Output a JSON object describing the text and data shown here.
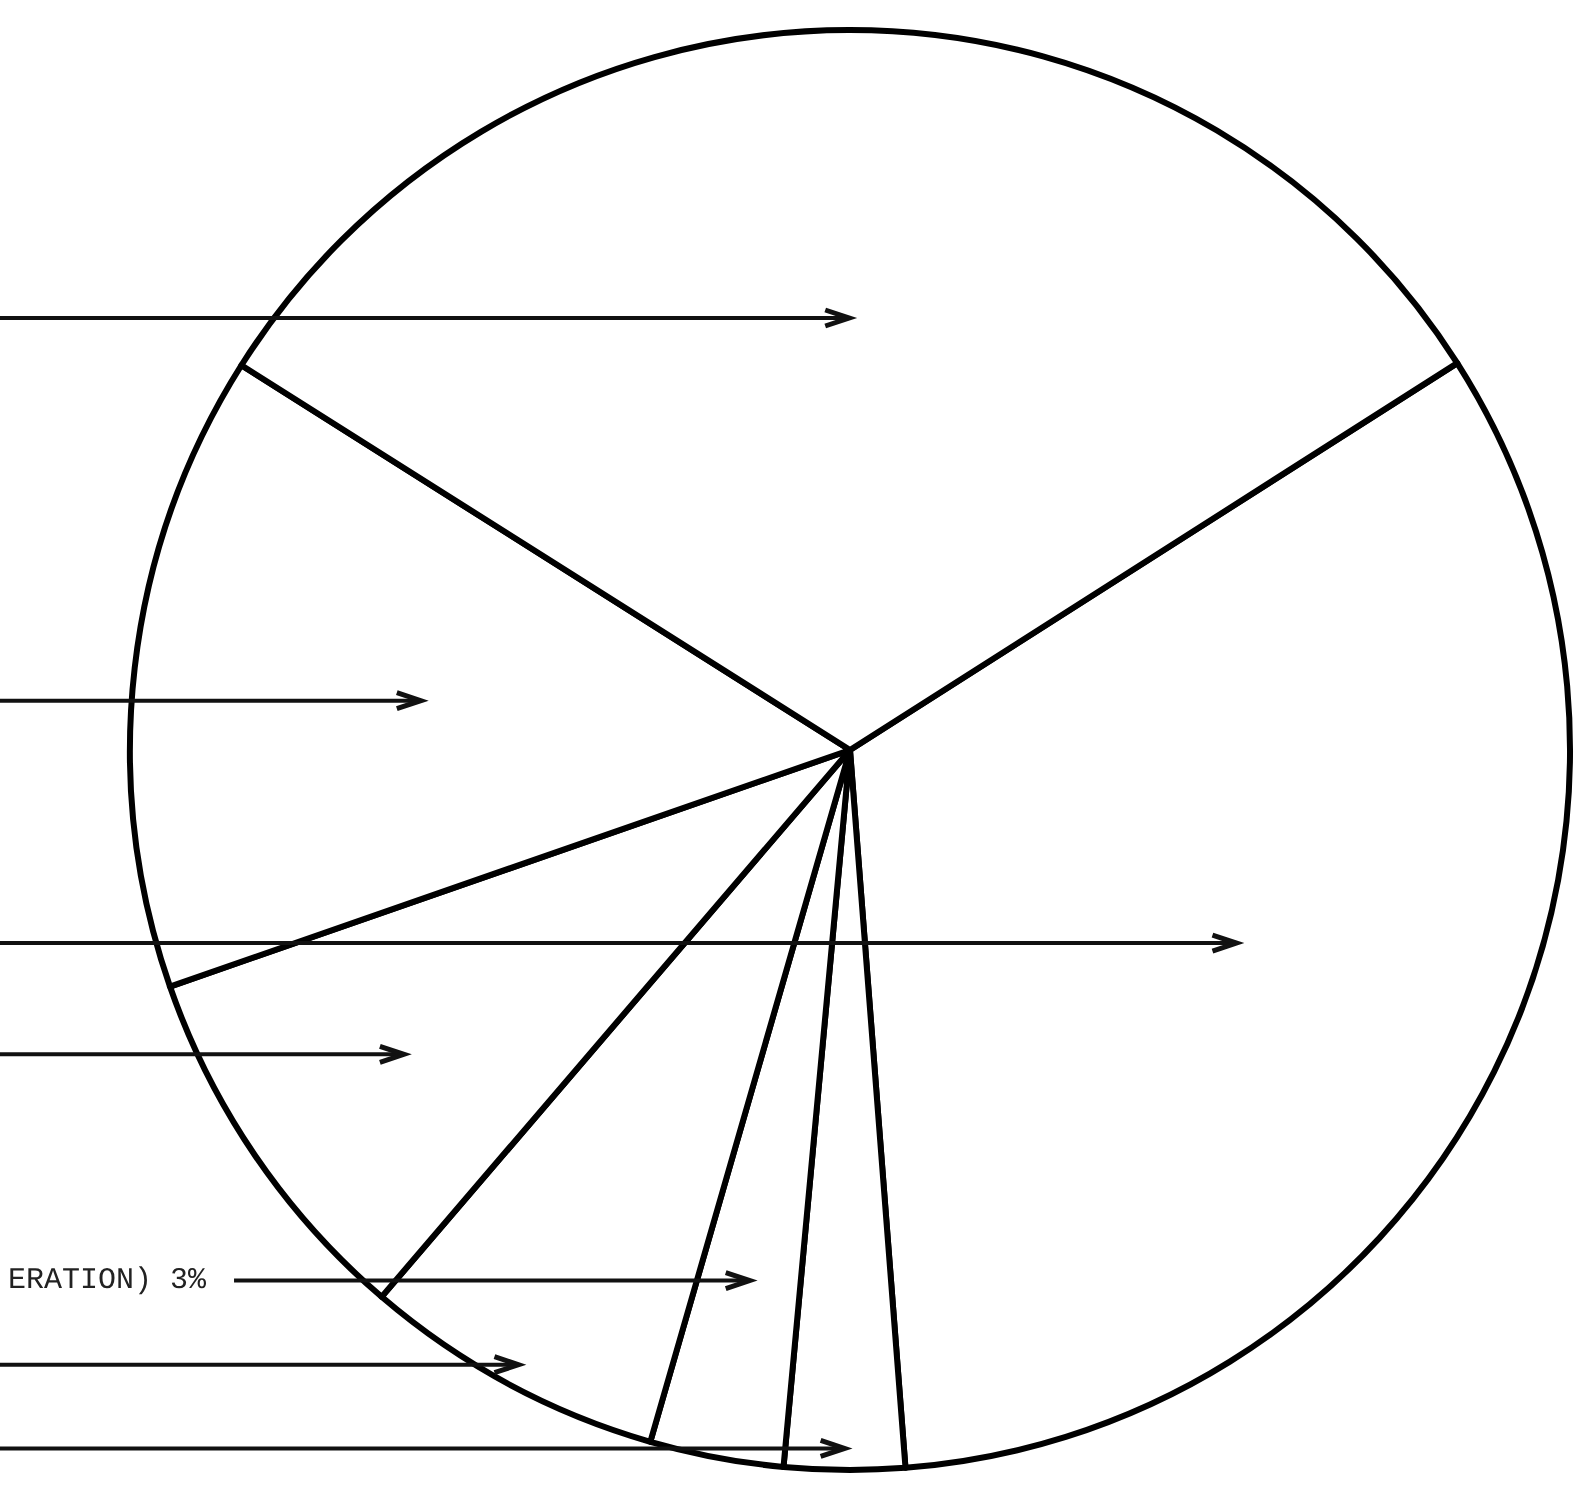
{
  "chart_data": {
    "type": "pie",
    "categories": [
      null,
      null,
      "ERATION) 3%",
      null,
      null,
      null,
      null
    ],
    "values": [
      32.8,
      2.7,
      3,
      6.8,
      8.4,
      14.3,
      32.0
    ],
    "colors": [
      "#ffffff",
      "#ffffff",
      "#ffffff",
      "#ffffff",
      "#ffffff",
      "#ffffff",
      "#ffffff"
    ]
  }
}
